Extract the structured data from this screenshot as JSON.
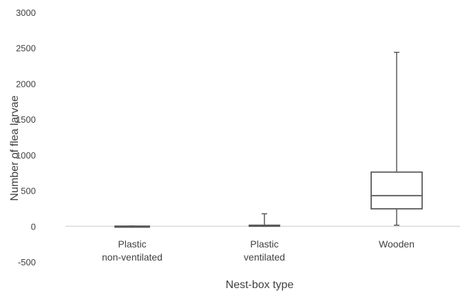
{
  "chart_data": {
    "type": "boxplot",
    "title": "",
    "xlabel": "Nest-box type",
    "ylabel": "Number of flea larvae",
    "ylim": [
      -500,
      3000
    ],
    "y_ticks": [
      3000,
      2500,
      2000,
      1500,
      1000,
      500,
      0,
      -500
    ],
    "y_tick_labels": [
      "3000",
      "2500",
      "2000",
      "1500",
      "1000",
      "500",
      "0",
      "-500"
    ],
    "grid": false,
    "categories": [
      {
        "name": "Plastic non-ventilated",
        "lines": [
          "Plastic",
          "non-ventilated"
        ]
      },
      {
        "name": "Plastic ventilated",
        "lines": [
          "Plastic",
          "ventilated"
        ]
      },
      {
        "name": "Wooden",
        "lines": [
          "Wooden"
        ]
      }
    ],
    "boxes": [
      {
        "min": 0,
        "q1": 0,
        "median": 0,
        "q3": 2,
        "max": 5
      },
      {
        "min": 0,
        "q1": 0,
        "median": 5,
        "q3": 15,
        "max": 175
      },
      {
        "min": 15,
        "q1": 245,
        "median": 430,
        "q3": 760,
        "max": 2440
      }
    ]
  }
}
